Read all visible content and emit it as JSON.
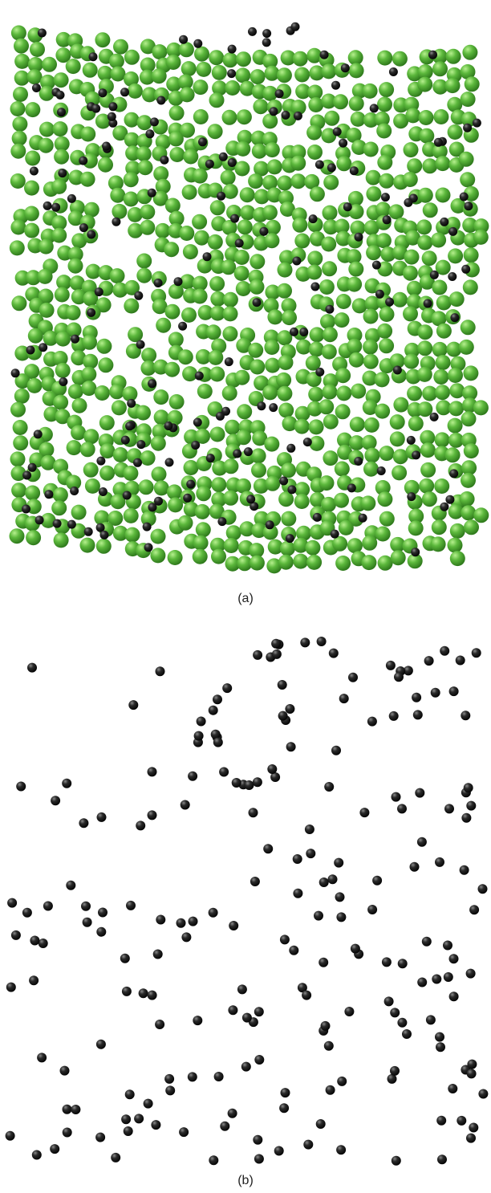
{
  "figure": {
    "panel_a": {
      "label": "(a)"
    },
    "panel_b": {
      "label": "(b)"
    }
  },
  "colors": {
    "green_atom": "#5cb83c",
    "green_atom_dark": "#2f7a1c",
    "black_atom": "#1c1c1c"
  }
}
